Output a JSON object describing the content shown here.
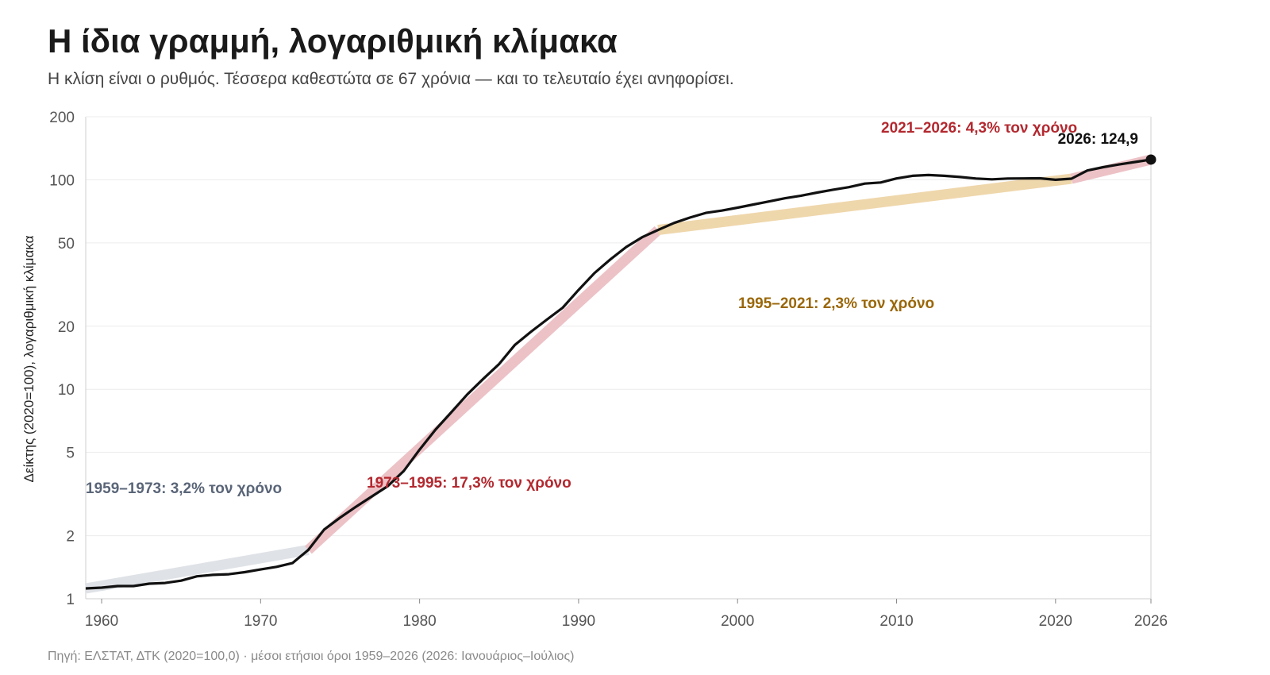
{
  "header": {
    "title": "Η ίδια γραμμή, λογαριθμική κλίμακα",
    "subtitle": "Η κλίση είναι ο ρυθμός. Τέσσερα καθεστώτα σε 67 χρόνια — και το τελευταίο έχει ανηφορίσει."
  },
  "footer": {
    "source": "Πηγή: ΕΛΣΤΑΤ, ΔΤΚ (2020=100,0) · μέσοι ετήσιοι όροι 1959–2026 (2026: Ιανουάριος–Ιούλιος)"
  },
  "chart_data": {
    "type": "line",
    "title": "Η ίδια γραμμή, λογαριθμική κλίμακα",
    "ylabel": "Δείκτης (2020=100), λογαριθμική κλίμακα",
    "xlabel": "",
    "yscale": "log",
    "xlim": [
      1959,
      2026
    ],
    "ylim": [
      1,
      200
    ],
    "grid": true,
    "x_ticks": [
      1960,
      1970,
      1980,
      1990,
      2000,
      2010,
      2020,
      2026
    ],
    "x_tick_labels": [
      "1960",
      "1970",
      "1980",
      "1990",
      "2000",
      "2010",
      "2020",
      "2026"
    ],
    "y_ticks": [
      1,
      2,
      5,
      10,
      20,
      50,
      100,
      200
    ],
    "y_tick_labels": [
      "1",
      "2",
      "5",
      "10",
      "20",
      "50",
      "100",
      "200"
    ],
    "series": [
      {
        "x": [
          1959,
          1960,
          1961,
          1962,
          1963,
          1964,
          1965,
          1966,
          1967,
          1968,
          1969,
          1970,
          1971,
          1972,
          1973,
          1974,
          1975,
          1976,
          1977,
          1978,
          1979,
          1980,
          1981,
          1982,
          1983,
          1984,
          1985,
          1986,
          1987,
          1988,
          1989,
          1990,
          1991,
          1992,
          1993,
          1994,
          1995,
          1996,
          1997,
          1998,
          1999,
          2000,
          2001,
          2002,
          2003,
          2004,
          2005,
          2006,
          2007,
          2008,
          2009,
          2010,
          2011,
          2012,
          2013,
          2014,
          2015,
          2016,
          2017,
          2018,
          2019,
          2020,
          2021,
          2022,
          2023,
          2024,
          2025,
          2026
        ],
        "values": [
          1.12,
          1.13,
          1.15,
          1.15,
          1.18,
          1.19,
          1.22,
          1.28,
          1.3,
          1.31,
          1.34,
          1.38,
          1.42,
          1.48,
          1.71,
          2.14,
          2.44,
          2.75,
          3.08,
          3.45,
          4.07,
          5.15,
          6.42,
          7.78,
          9.45,
          11.2,
          13.2,
          16.3,
          18.8,
          21.5,
          24.5,
          29.8,
          35.9,
          41.7,
          47.8,
          53.2,
          57.6,
          62.2,
          66.0,
          69.5,
          71.3,
          73.6,
          76.2,
          78.9,
          81.7,
          84.0,
          86.9,
          89.7,
          92.2,
          95.9,
          97.1,
          101.5,
          104.5,
          105.4,
          104.5,
          103.1,
          101.4,
          100.5,
          101.4,
          101.5,
          101.7,
          100.0,
          101.2,
          110.8,
          114.9,
          118.4,
          121.6,
          124.9
        ]
      }
    ],
    "regimes": [
      {
        "label": "1959–1973: 3,2% τον χρόνο",
        "start": 1959,
        "end": 1973,
        "rate_pct": 3.2,
        "color": "#dfe2e7",
        "label_color": "#5a6578"
      },
      {
        "label": "1973–1995: 17,3% τον χρόνο",
        "start": 1973,
        "end": 1995,
        "rate_pct": 17.3,
        "color": "#ecc2c6",
        "label_color": "#b3282f"
      },
      {
        "label": "1995–2021: 2,3% τον χρόνο",
        "start": 1995,
        "end": 2021,
        "rate_pct": 2.3,
        "color": "#efd7ac",
        "label_color": "#9a6708"
      },
      {
        "label": "2021–2026: 4,3% τον χρόνο",
        "start": 2021,
        "end": 2026,
        "rate_pct": 4.3,
        "color": "#ecc2c6",
        "label_color": "#b3282f"
      }
    ],
    "endpoint_label": "2026: 124,9",
    "colors": {
      "line": "#111111",
      "grid": "#ececec",
      "axis": "#cfcfcf"
    }
  }
}
